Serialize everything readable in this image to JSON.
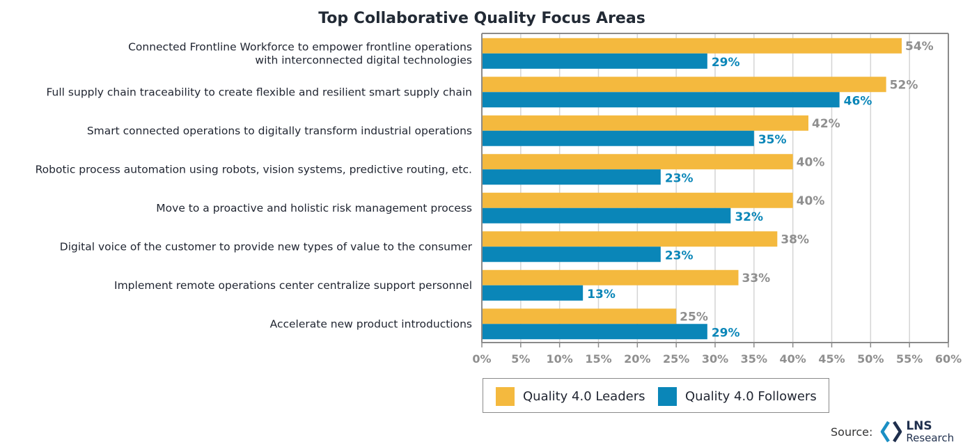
{
  "colors": {
    "leaders": "#f4b93e",
    "followers": "#0a86b8",
    "grid": "#d4d4d4",
    "axis": "#8a8a8a"
  },
  "legend": {
    "leaders_label": "Quality 4.0 Leaders",
    "followers_label": "Quality 4.0 Followers"
  },
  "source": {
    "label": "Source:",
    "brand_main": "LNS",
    "brand_sub": "Research"
  },
  "chart_data": {
    "type": "bar",
    "orientation": "horizontal",
    "title": "Top Collaborative Quality Focus Areas",
    "xlim": [
      0,
      60
    ],
    "grid": true,
    "legend_position": "bottom",
    "xticks": [
      "0%",
      "5%",
      "10%",
      "15%",
      "20%",
      "25%",
      "30%",
      "35%",
      "40%",
      "45%",
      "50%",
      "55%",
      "60%"
    ],
    "categories": [
      [
        "Connected Frontline Workforce to empower frontline operations",
        "with interconnected digital technologies"
      ],
      [
        "Full supply chain traceability to create flexible and resilient smart supply chain"
      ],
      [
        "Smart connected operations to digitally transform industrial operations"
      ],
      [
        "Robotic process automation using robots, vision systems, predictive routing, etc."
      ],
      [
        "Move to a proactive and holistic risk management process"
      ],
      [
        "Digital voice of the customer to provide new  types of value to the consumer"
      ],
      [
        "Implement remote operations center centralize support personnel"
      ],
      [
        "Accelerate new product introductions"
      ]
    ],
    "series": [
      {
        "name": "Quality 4.0 Leaders",
        "values": [
          54,
          52,
          42,
          40,
          40,
          38,
          33,
          25
        ],
        "labels": [
          "54%",
          "52%",
          "42%",
          "40%",
          "40%",
          "38%",
          "33%",
          "25%"
        ]
      },
      {
        "name": "Quality 4.0 Followers",
        "values": [
          29,
          46,
          35,
          23,
          32,
          23,
          13,
          29
        ],
        "labels": [
          "29%",
          "46%",
          "35%",
          "23%",
          "32%",
          "23%",
          "13%",
          "29%"
        ]
      }
    ]
  }
}
